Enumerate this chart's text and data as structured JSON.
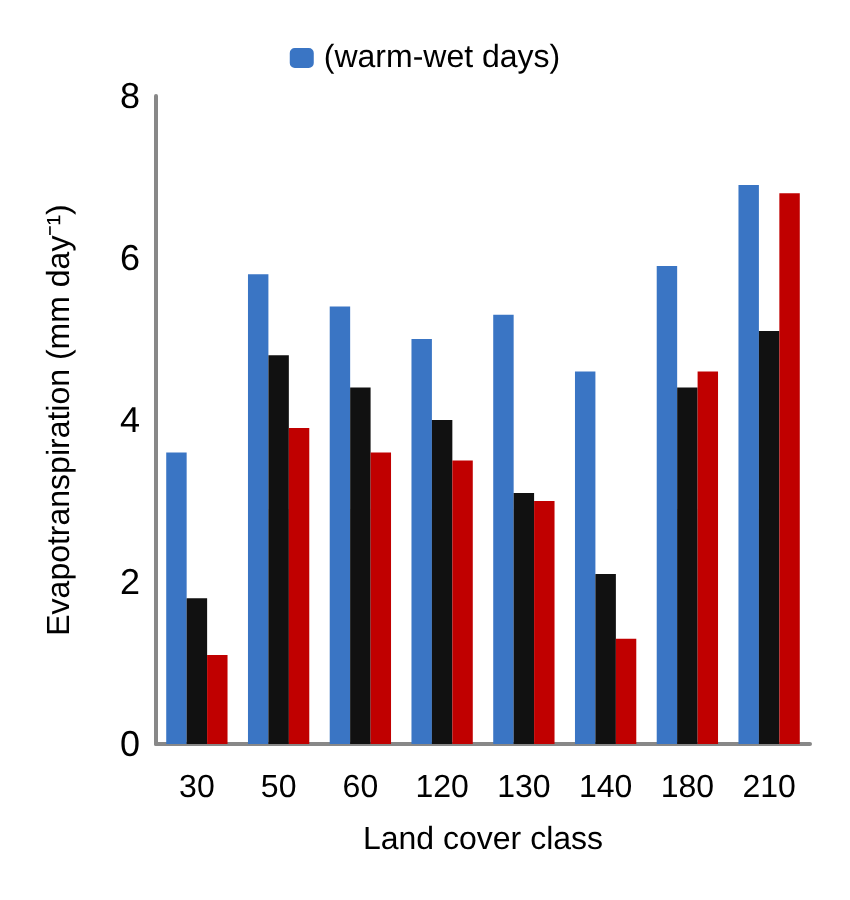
{
  "chart_data": {
    "type": "bar",
    "xlabel": "Land cover class",
    "ylabel": "Evapotranspiration (mm day⁻¹)",
    "categories": [
      "30",
      "50",
      "60",
      "120",
      "130",
      "140",
      "180",
      "210"
    ],
    "series": [
      {
        "name": "(warm-wet days)",
        "color": "#3a75c4",
        "values": [
          3.6,
          5.8,
          5.4,
          5.0,
          5.3,
          4.6,
          5.9,
          6.9
        ]
      },
      {
        "color": "#111111",
        "values": [
          1.8,
          4.8,
          4.4,
          4.0,
          3.1,
          2.1,
          4.4,
          5.1
        ]
      },
      {
        "color": "#c00000",
        "values": [
          1.1,
          3.9,
          3.6,
          3.5,
          3.0,
          1.3,
          4.6,
          6.8
        ]
      }
    ],
    "ylim": [
      0,
      8
    ],
    "yticks": [
      0,
      2,
      4,
      6,
      8
    ],
    "grid": false,
    "legend": "top"
  }
}
